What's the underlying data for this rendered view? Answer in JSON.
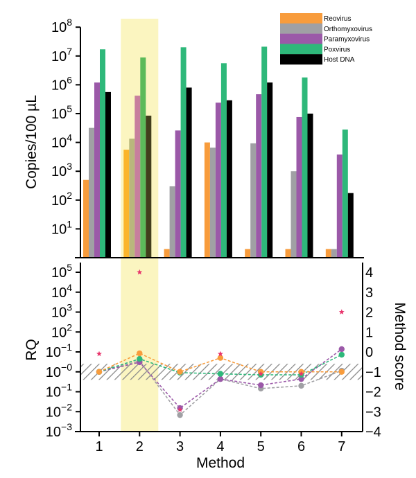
{
  "chart_data": [
    {
      "type": "bar",
      "panel": "top",
      "ylabel": "Copies/100 µL",
      "yscale": "log",
      "ylim": [
        1,
        100000000
      ],
      "yticks": [
        {
          "value": 10,
          "base": "10",
          "exp": "1"
        },
        {
          "value": 100,
          "base": "10",
          "exp": "2"
        },
        {
          "value": 1000,
          "base": "10",
          "exp": "3"
        },
        {
          "value": 10000,
          "base": "10",
          "exp": "4"
        },
        {
          "value": 100000,
          "base": "10",
          "exp": "5"
        },
        {
          "value": 1000000,
          "base": "10",
          "exp": "6"
        },
        {
          "value": 10000000,
          "base": "10",
          "exp": "7"
        },
        {
          "value": 100000000,
          "base": "10",
          "exp": "8"
        }
      ],
      "categories": [
        "1",
        "2",
        "3",
        "4",
        "5",
        "6",
        "7"
      ],
      "highlighted_category": "2",
      "legend_position": "top-right",
      "series": [
        {
          "name": "Reovirus",
          "color": "#f89c3c",
          "values": [
            500,
            5600,
            2,
            10000,
            2,
            2,
            2
          ]
        },
        {
          "name": "Orthomyxovirus",
          "color": "#a0a0a4",
          "values": [
            32000,
            13500,
            300,
            6600,
            9300,
            1000,
            2
          ]
        },
        {
          "name": "Paramyxovirus",
          "color": "#9b59a8",
          "values": [
            1200000,
            420000,
            26000,
            240000,
            470000,
            76000,
            3800
          ]
        },
        {
          "name": "Poxvirus",
          "color": "#2eb87a",
          "values": [
            17000000,
            8900000,
            20000000,
            5600000,
            21000000,
            1800000,
            28000
          ]
        },
        {
          "name": "Host DNA",
          "color": "#000000",
          "values": [
            560000,
            85000,
            800000,
            290000,
            1200000,
            100000,
            175
          ]
        }
      ],
      "highlight_colors": {
        "Reovirus": "#fbb52a",
        "Orthomyxovirus": "#b9b77c",
        "Paramyxovirus": "#c77f9d",
        "Poxvirus": "#5cba5a",
        "Host DNA": "#423e1c"
      }
    },
    {
      "type": "line",
      "panel": "bottom",
      "xlabel": "Method",
      "ylabel": "RQ",
      "y2label": "Method score",
      "x": [
        1,
        2,
        3,
        4,
        5,
        6,
        7
      ],
      "xticks": [
        "1",
        "2",
        "3",
        "4",
        "5",
        "6",
        "7"
      ],
      "highlighted_category": "2",
      "ylim_score": [
        -4,
        4
      ],
      "yticks_left": [
        {
          "score": 4,
          "base": "10",
          "exp": "5"
        },
        {
          "score": 3,
          "base": "10",
          "exp": "4"
        },
        {
          "score": 2,
          "base": "10",
          "exp": "3"
        },
        {
          "score": 1,
          "base": "10",
          "exp": "2"
        },
        {
          "score": 0,
          "base": "10",
          "exp": "−1"
        },
        {
          "score": -1,
          "base": "10",
          "exp": "−0"
        },
        {
          "score": -2,
          "base": "10",
          "exp": "−1"
        },
        {
          "score": -3,
          "base": "10",
          "exp": "−2"
        },
        {
          "score": -4,
          "base": "10",
          "exp": "−3"
        }
      ],
      "yticks_right": [
        "4",
        "3",
        "2",
        "1",
        "0",
        "−1",
        "−2",
        "−3",
        "−4"
      ],
      "yticks_right_values": [
        4,
        3,
        2,
        1,
        0,
        -1,
        -2,
        -3,
        -4
      ],
      "reference_band": {
        "score_low": -1.4,
        "score_high": -0.6,
        "style": "hatched",
        "color": "#8a8a8a"
      },
      "series": [
        {
          "name": "Reovirus",
          "color": "#f89c3c",
          "style": "dashed",
          "values": [
            -1.0,
            -0.07,
            -1.0,
            -0.3,
            -1.0,
            -1.0,
            -1.0
          ]
        },
        {
          "name": "Orthomyxovirus",
          "color": "#a0a0a4",
          "style": "dashed",
          "values": [
            -1.0,
            -0.45,
            -3.17,
            -1.36,
            -1.84,
            -1.7,
            -0.94
          ]
        },
        {
          "name": "Paramyxovirus",
          "color": "#9b59a8",
          "style": "dashed",
          "values": [
            -1.0,
            -0.52,
            -2.82,
            -1.36,
            -1.67,
            -1.36,
            0.14
          ]
        },
        {
          "name": "Poxvirus",
          "color": "#2eb87a",
          "style": "dashed",
          "values": [
            -1.0,
            -0.35,
            -1.04,
            -1.1,
            -1.15,
            -1.15,
            -0.14
          ]
        }
      ],
      "method_score_stars": {
        "name": "Method score",
        "color": "#e8336b",
        "values": [
          -0.1,
          4.0,
          -2.9,
          -0.1,
          -1.1,
          -1.1,
          2.0
        ]
      }
    }
  ]
}
